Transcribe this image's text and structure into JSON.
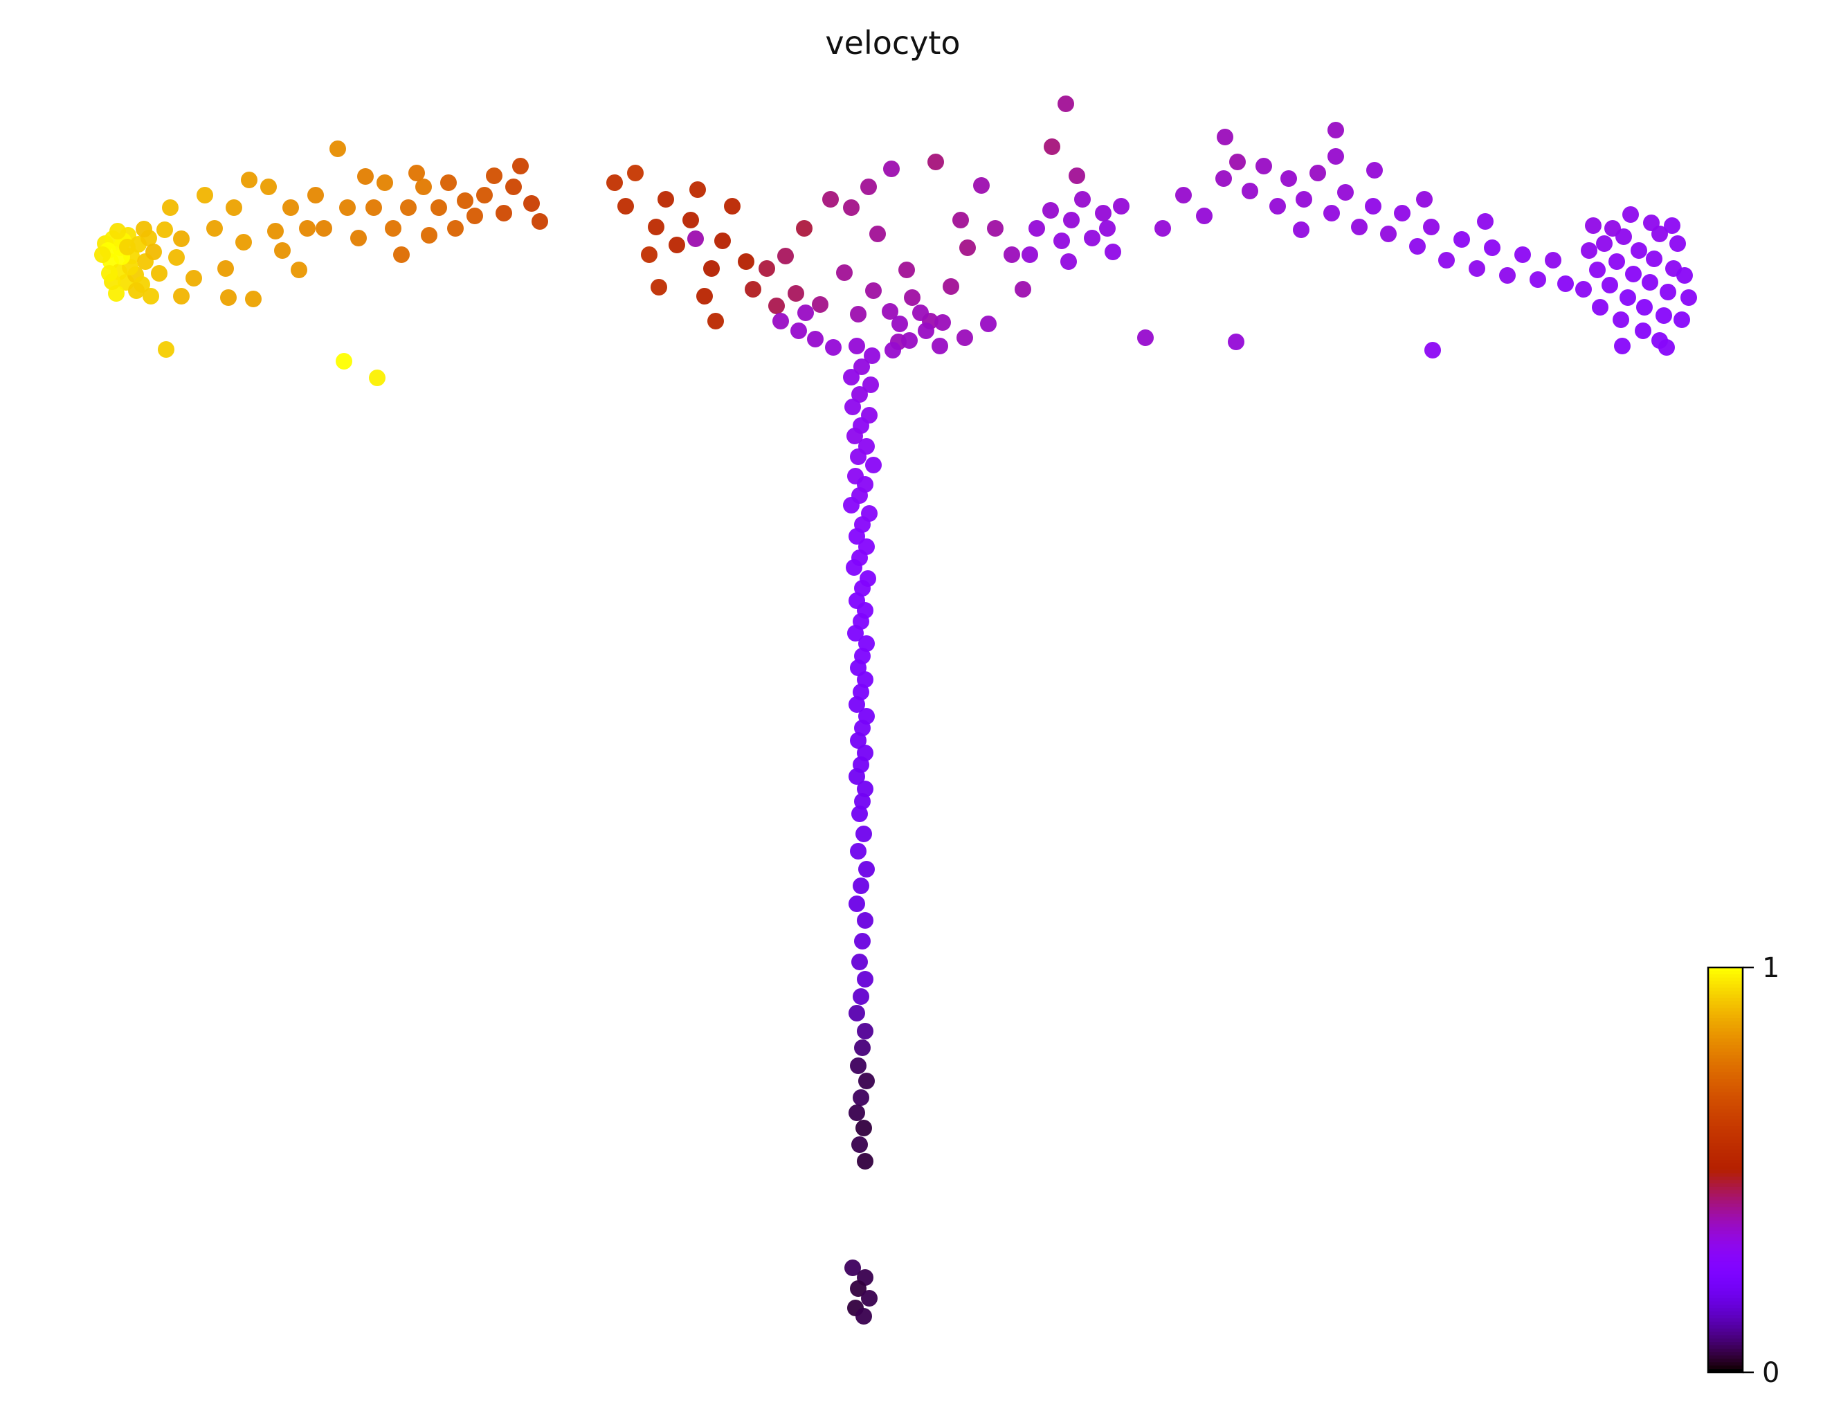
{
  "chart_data": {
    "type": "scatter",
    "title": "velocyto",
    "colormap": "gnuplot",
    "color_range": [
      0,
      1
    ],
    "colorbar": {
      "max_label": "1",
      "min_label": "0",
      "position": "right-bottom",
      "orientation": "vertical"
    },
    "marker_size_px": 12,
    "marker_opacity": 0.95,
    "axes_visible": false,
    "grid": false,
    "coordinate_space": "figure pixels (2634x2036), y increases downward; third value = colormap value 0-1",
    "points": [
      [
        152,
        352,
        0.97
      ],
      [
        163,
        345,
        0.98
      ],
      [
        174,
        358,
        0.99
      ],
      [
        185,
        340,
        0.96
      ],
      [
        160,
        378,
        1.0
      ],
      [
        172,
        393,
        0.97
      ],
      [
        190,
        370,
        0.95
      ],
      [
        200,
        353,
        0.94
      ],
      [
        182,
        408,
        0.96
      ],
      [
        168,
        424,
        0.98
      ],
      [
        196,
        397,
        0.93
      ],
      [
        210,
        378,
        0.92
      ],
      [
        156,
        362,
        1.0
      ],
      [
        178,
        348,
        0.99
      ],
      [
        205,
        411,
        0.94
      ],
      [
        162,
        407,
        0.97
      ],
      [
        188,
        386,
        0.95
      ],
      [
        215,
        344,
        0.92
      ],
      [
        170,
        334,
        0.96
      ],
      [
        158,
        395,
        0.98
      ],
      [
        197,
        420,
        0.93
      ],
      [
        208,
        331,
        0.91
      ],
      [
        176,
        371,
        1.0
      ],
      [
        148,
        368,
        0.97
      ],
      [
        222,
        364,
        0.9
      ],
      [
        184,
        357,
        0.94
      ],
      [
        230,
        395,
        0.91
      ],
      [
        218,
        428,
        0.93
      ],
      [
        240,
        505,
        0.93
      ],
      [
        497,
        522,
        1.0
      ],
      [
        545,
        546,
        0.98
      ],
      [
        246,
        300,
        0.9
      ],
      [
        262,
        345,
        0.88
      ],
      [
        238,
        332,
        0.91
      ],
      [
        255,
        372,
        0.9
      ],
      [
        280,
        402,
        0.88
      ],
      [
        296,
        282,
        0.89
      ],
      [
        310,
        330,
        0.86
      ],
      [
        326,
        388,
        0.85
      ],
      [
        338,
        300,
        0.86
      ],
      [
        352,
        350,
        0.85
      ],
      [
        366,
        432,
        0.86
      ],
      [
        360,
        260,
        0.85
      ],
      [
        388,
        270,
        0.85
      ],
      [
        398,
        334,
        0.83
      ],
      [
        408,
        362,
        0.83
      ],
      [
        420,
        300,
        0.82
      ],
      [
        432,
        390,
        0.84
      ],
      [
        444,
        330,
        0.81
      ],
      [
        456,
        282,
        0.81
      ],
      [
        468,
        330,
        0.8
      ],
      [
        488,
        215,
        0.82
      ],
      [
        502,
        300,
        0.8
      ],
      [
        518,
        344,
        0.79
      ],
      [
        528,
        255,
        0.79
      ],
      [
        540,
        300,
        0.78
      ],
      [
        556,
        264,
        0.8
      ],
      [
        568,
        330,
        0.77
      ],
      [
        580,
        368,
        0.75
      ],
      [
        590,
        300,
        0.76
      ],
      [
        602,
        250,
        0.77
      ],
      [
        612,
        270,
        0.78
      ],
      [
        620,
        340,
        0.75
      ],
      [
        634,
        300,
        0.74
      ],
      [
        648,
        264,
        0.72
      ],
      [
        658,
        330,
        0.73
      ],
      [
        672,
        290,
        0.72
      ],
      [
        686,
        312,
        0.71
      ],
      [
        700,
        282,
        0.7
      ],
      [
        330,
        430,
        0.86
      ],
      [
        262,
        428,
        0.89
      ],
      [
        714,
        254,
        0.68
      ],
      [
        728,
        308,
        0.66
      ],
      [
        752,
        240,
        0.64
      ],
      [
        768,
        294,
        0.62
      ],
      [
        742,
        270,
        0.65
      ],
      [
        780,
        320,
        0.63
      ],
      [
        888,
        264,
        0.58
      ],
      [
        904,
        298,
        0.56
      ],
      [
        918,
        250,
        0.6
      ],
      [
        948,
        328,
        0.55
      ],
      [
        962,
        288,
        0.54
      ],
      [
        938,
        368,
        0.57
      ],
      [
        978,
        354,
        0.53
      ],
      [
        998,
        318,
        0.52
      ],
      [
        1008,
        274,
        0.55
      ],
      [
        1028,
        388,
        0.5
      ],
      [
        1018,
        428,
        0.52
      ],
      [
        1044,
        348,
        0.51
      ],
      [
        1058,
        298,
        0.53
      ],
      [
        1078,
        378,
        0.5
      ],
      [
        1034,
        464,
        0.54
      ],
      [
        1088,
        418,
        0.48
      ],
      [
        1108,
        388,
        0.46
      ],
      [
        1005,
        345,
        0.38
      ],
      [
        1122,
        442,
        0.45
      ],
      [
        952,
        415,
        0.56
      ],
      [
        1135,
        370,
        0.44
      ],
      [
        1162,
        330,
        0.46
      ],
      [
        1150,
        424,
        0.44
      ],
      [
        1185,
        440,
        0.41
      ],
      [
        1200,
        288,
        0.42
      ],
      [
        1220,
        394,
        0.4
      ],
      [
        1240,
        454,
        0.38
      ],
      [
        1262,
        420,
        0.39
      ],
      [
        1268,
        338,
        0.4
      ],
      [
        1288,
        244,
        0.38
      ],
      [
        1286,
        450,
        0.37
      ],
      [
        1310,
        390,
        0.4
      ],
      [
        1318,
        430,
        0.39
      ],
      [
        1344,
        464,
        0.38
      ],
      [
        1352,
        234,
        0.42
      ],
      [
        1374,
        414,
        0.4
      ],
      [
        1388,
        318,
        0.4
      ],
      [
        1398,
        358,
        0.41
      ],
      [
        1418,
        268,
        0.38
      ],
      [
        1438,
        330,
        0.39
      ],
      [
        1462,
        368,
        0.37
      ],
      [
        1478,
        418,
        0.38
      ],
      [
        1428,
        468,
        0.36
      ],
      [
        1394,
        488,
        0.37
      ],
      [
        1358,
        500,
        0.36
      ],
      [
        1298,
        494,
        0.37
      ],
      [
        1230,
        300,
        0.41
      ],
      [
        1255,
        270,
        0.4
      ],
      [
        1128,
        464,
        0.36
      ],
      [
        1154,
        478,
        0.35
      ],
      [
        1178,
        490,
        0.35
      ],
      [
        1204,
        502,
        0.34
      ],
      [
        1164,
        452,
        0.36
      ],
      [
        1290,
        506,
        0.35
      ],
      [
        1314,
        492,
        0.36
      ],
      [
        1338,
        478,
        0.36
      ],
      [
        1362,
        466,
        0.37
      ],
      [
        1300,
        468,
        0.36
      ],
      [
        1330,
        452,
        0.37
      ],
      [
        1540,
        150,
        0.4
      ],
      [
        1520,
        212,
        0.42
      ],
      [
        1556,
        254,
        0.4
      ],
      [
        1930,
        188,
        0.36
      ],
      [
        1770,
        198,
        0.37
      ],
      [
        1498,
        330,
        0.34
      ],
      [
        1518,
        304,
        0.35
      ],
      [
        1534,
        348,
        0.33
      ],
      [
        1548,
        318,
        0.34
      ],
      [
        1564,
        288,
        0.35
      ],
      [
        1578,
        344,
        0.33
      ],
      [
        1594,
        308,
        0.34
      ],
      [
        1608,
        364,
        0.32
      ],
      [
        1544,
        378,
        0.33
      ],
      [
        1488,
        368,
        0.34
      ],
      [
        1600,
        330,
        0.33
      ],
      [
        1620,
        298,
        0.34
      ],
      [
        1655,
        488,
        0.35
      ],
      [
        1680,
        330,
        0.34
      ],
      [
        1710,
        282,
        0.35
      ],
      [
        1740,
        312,
        0.34
      ],
      [
        1768,
        258,
        0.36
      ],
      [
        1788,
        234,
        0.38
      ],
      [
        1806,
        276,
        0.35
      ],
      [
        1826,
        240,
        0.36
      ],
      [
        1846,
        298,
        0.34
      ],
      [
        1862,
        258,
        0.35
      ],
      [
        1884,
        288,
        0.34
      ],
      [
        1904,
        250,
        0.36
      ],
      [
        1924,
        308,
        0.33
      ],
      [
        1944,
        278,
        0.34
      ],
      [
        1964,
        328,
        0.33
      ],
      [
        1984,
        298,
        0.32
      ],
      [
        2006,
        338,
        0.33
      ],
      [
        2026,
        308,
        0.32
      ],
      [
        2048,
        356,
        0.31
      ],
      [
        2068,
        328,
        0.32
      ],
      [
        2090,
        376,
        0.31
      ],
      [
        2112,
        346,
        0.3
      ],
      [
        2134,
        388,
        0.31
      ],
      [
        2156,
        358,
        0.3
      ],
      [
        2178,
        398,
        0.31
      ],
      [
        2200,
        368,
        0.3
      ],
      [
        2222,
        404,
        0.3
      ],
      [
        2244,
        376,
        0.31
      ],
      [
        2262,
        410,
        0.29
      ],
      [
        1930,
        226,
        0.35
      ],
      [
        1986,
        246,
        0.34
      ],
      [
        1880,
        332,
        0.33
      ],
      [
        2058,
        288,
        0.33
      ],
      [
        2146,
        320,
        0.31
      ],
      [
        1786,
        494,
        0.34
      ],
      [
        2070,
        506,
        0.3
      ],
      [
        2296,
        362,
        0.31
      ],
      [
        2308,
        390,
        0.3
      ],
      [
        2318,
        352,
        0.31
      ],
      [
        2326,
        412,
        0.29
      ],
      [
        2336,
        378,
        0.3
      ],
      [
        2346,
        342,
        0.31
      ],
      [
        2352,
        430,
        0.28
      ],
      [
        2360,
        396,
        0.29
      ],
      [
        2368,
        362,
        0.3
      ],
      [
        2376,
        444,
        0.28
      ],
      [
        2384,
        408,
        0.29
      ],
      [
        2390,
        374,
        0.3
      ],
      [
        2398,
        338,
        0.31
      ],
      [
        2404,
        456,
        0.28
      ],
      [
        2410,
        422,
        0.29
      ],
      [
        2418,
        388,
        0.3
      ],
      [
        2424,
        352,
        0.3
      ],
      [
        2430,
        462,
        0.28
      ],
      [
        2342,
        462,
        0.29
      ],
      [
        2312,
        444,
        0.29
      ],
      [
        2374,
        478,
        0.28
      ],
      [
        2398,
        492,
        0.28
      ],
      [
        2356,
        310,
        0.31
      ],
      [
        2386,
        322,
        0.31
      ],
      [
        2416,
        326,
        0.3
      ],
      [
        2330,
        330,
        0.32
      ],
      [
        2302,
        326,
        0.32
      ],
      [
        2288,
        418,
        0.3
      ],
      [
        2344,
        500,
        0.28
      ],
      [
        2408,
        502,
        0.28
      ],
      [
        2434,
        398,
        0.29
      ],
      [
        2440,
        430,
        0.29
      ],
      [
        1238,
        500,
        0.34
      ],
      [
        1260,
        514,
        0.33
      ],
      [
        1245,
        530,
        0.33
      ],
      [
        1230,
        545,
        0.32
      ],
      [
        1258,
        556,
        0.32
      ],
      [
        1242,
        570,
        0.32
      ],
      [
        1232,
        588,
        0.31
      ],
      [
        1256,
        600,
        0.31
      ],
      [
        1244,
        615,
        0.3
      ],
      [
        1235,
        630,
        0.31
      ],
      [
        1252,
        645,
        0.3
      ],
      [
        1240,
        660,
        0.3
      ],
      [
        1262,
        672,
        0.29
      ],
      [
        1236,
        688,
        0.3
      ],
      [
        1250,
        700,
        0.29
      ],
      [
        1242,
        716,
        0.29
      ],
      [
        1230,
        730,
        0.28
      ],
      [
        1256,
        742,
        0.28
      ],
      [
        1246,
        758,
        0.28
      ],
      [
        1238,
        775,
        0.27
      ],
      [
        1252,
        790,
        0.27
      ],
      [
        1242,
        806,
        0.27
      ],
      [
        1234,
        820,
        0.26
      ],
      [
        1254,
        836,
        0.26
      ],
      [
        1246,
        850,
        0.26
      ],
      [
        1238,
        868,
        0.25
      ],
      [
        1250,
        882,
        0.25
      ],
      [
        1244,
        898,
        0.25
      ],
      [
        1236,
        915,
        0.24
      ],
      [
        1252,
        930,
        0.24
      ],
      [
        1246,
        948,
        0.24
      ],
      [
        1240,
        965,
        0.23
      ],
      [
        1250,
        982,
        0.23
      ],
      [
        1244,
        1000,
        0.23
      ],
      [
        1238,
        1018,
        0.22
      ],
      [
        1252,
        1035,
        0.22
      ],
      [
        1246,
        1052,
        0.22
      ],
      [
        1240,
        1070,
        0.21
      ],
      [
        1250,
        1088,
        0.21
      ],
      [
        1244,
        1105,
        0.21
      ],
      [
        1238,
        1122,
        0.2
      ],
      [
        1250,
        1140,
        0.2
      ],
      [
        1246,
        1158,
        0.2
      ],
      [
        1242,
        1176,
        0.2
      ],
      [
        1248,
        1205,
        0.19
      ],
      [
        1240,
        1230,
        0.19
      ],
      [
        1252,
        1256,
        0.18
      ],
      [
        1244,
        1280,
        0.18
      ],
      [
        1238,
        1306,
        0.18
      ],
      [
        1250,
        1330,
        0.17
      ],
      [
        1246,
        1360,
        0.17
      ],
      [
        1242,
        1390,
        0.16
      ],
      [
        1250,
        1415,
        0.16
      ],
      [
        1244,
        1440,
        0.15
      ],
      [
        1238,
        1464,
        0.12
      ],
      [
        1250,
        1490,
        0.1
      ],
      [
        1246,
        1514,
        0.08
      ],
      [
        1240,
        1540,
        0.06
      ],
      [
        1252,
        1562,
        0.05
      ],
      [
        1244,
        1586,
        0.06
      ],
      [
        1238,
        1608,
        0.05
      ],
      [
        1248,
        1630,
        0.04
      ],
      [
        1242,
        1654,
        0.05
      ],
      [
        1250,
        1678,
        0.04
      ],
      [
        1232,
        1832,
        0.06
      ],
      [
        1250,
        1846,
        0.05
      ],
      [
        1240,
        1862,
        0.04
      ],
      [
        1256,
        1876,
        0.05
      ],
      [
        1236,
        1890,
        0.04
      ],
      [
        1248,
        1902,
        0.05
      ]
    ]
  }
}
